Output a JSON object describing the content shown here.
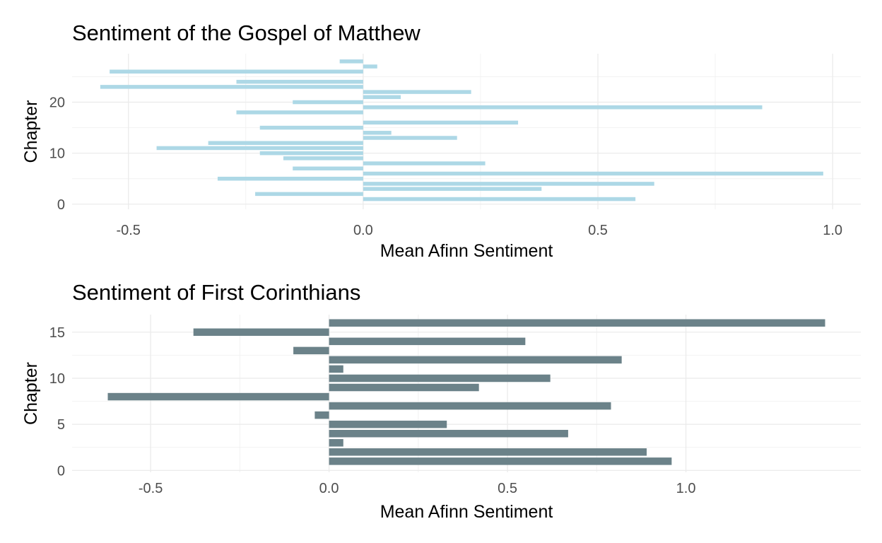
{
  "chart_data": [
    {
      "type": "bar",
      "orientation": "horizontal",
      "title": "Sentiment of the Gospel of Matthew",
      "xlabel": "Mean Afinn Sentiment",
      "ylabel": "Chapter",
      "bar_color": "#add8e6",
      "grid": true,
      "xlim": [
        -0.62,
        1.06
      ],
      "ylim": [
        -1,
        29.5
      ],
      "x_ticks": [
        -0.5,
        0.0,
        0.5,
        1.0
      ],
      "x_tick_labels": [
        "-0.5",
        "0.0",
        "0.5",
        "1.0"
      ],
      "y_ticks": [
        0,
        10,
        20
      ],
      "y_tick_labels": [
        "0",
        "10",
        "20"
      ],
      "categories": [
        1,
        2,
        3,
        4,
        5,
        6,
        7,
        8,
        9,
        10,
        11,
        12,
        13,
        14,
        15,
        16,
        17,
        18,
        19,
        20,
        21,
        22,
        23,
        24,
        25,
        26,
        27,
        28
      ],
      "values": [
        0.58,
        -0.23,
        0.38,
        0.62,
        -0.31,
        0.98,
        -0.15,
        0.26,
        -0.17,
        -0.22,
        -0.44,
        -0.33,
        0.2,
        0.06,
        -0.22,
        0.33,
        0.0,
        -0.27,
        0.85,
        -0.15,
        0.08,
        0.23,
        -0.56,
        -0.27,
        0.0,
        -0.54,
        0.03,
        -0.05
      ]
    },
    {
      "type": "bar",
      "orientation": "horizontal",
      "title": "Sentiment of First Corinthians",
      "xlabel": "Mean Afinn Sentiment",
      "ylabel": "Chapter",
      "bar_color": "#6b8289",
      "grid": true,
      "xlim": [
        -0.72,
        1.49
      ],
      "ylim": [
        -0.2,
        16.9
      ],
      "x_ticks": [
        -0.5,
        0.0,
        0.5,
        1.0
      ],
      "x_tick_labels": [
        "-0.5",
        "0.0",
        "0.5",
        "1.0"
      ],
      "y_ticks": [
        0,
        5,
        10,
        15
      ],
      "y_tick_labels": [
        "0",
        "5",
        "10",
        "15"
      ],
      "categories": [
        1,
        2,
        3,
        4,
        5,
        6,
        7,
        8,
        9,
        10,
        11,
        12,
        13,
        14,
        15,
        16
      ],
      "values": [
        0.96,
        0.89,
        0.04,
        0.67,
        0.33,
        -0.04,
        0.79,
        -0.62,
        0.42,
        0.62,
        0.04,
        0.82,
        -0.1,
        0.55,
        -0.38,
        1.39
      ]
    }
  ]
}
